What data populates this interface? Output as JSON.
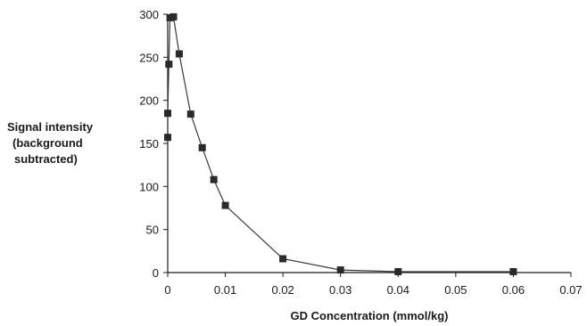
{
  "chart_data": {
    "type": "line",
    "title": "",
    "xlabel": "GD Concentration (mmol/kg)",
    "ylabel_lines": [
      "Signal intensity",
      "(background",
      "subtracted)"
    ],
    "xlim": [
      0,
      0.07
    ],
    "ylim": [
      0,
      300
    ],
    "x_ticks": [
      0,
      0.01,
      0.02,
      0.03,
      0.04,
      0.05,
      0.06,
      0.07
    ],
    "x_tick_labels": [
      "0",
      "0.01",
      "0.02",
      "0.03",
      "0.04",
      "0.05",
      "0.06",
      "0.07"
    ],
    "y_ticks": [
      0,
      50,
      100,
      150,
      200,
      250,
      300
    ],
    "y_tick_labels": [
      "0",
      "50",
      "100",
      "150",
      "200",
      "250",
      "300"
    ],
    "grid": false,
    "legend": "none",
    "marker": "square",
    "series": [
      {
        "points": [
          [
            0,
            157
          ],
          [
            0,
            185
          ],
          [
            0.0002,
            242
          ],
          [
            0.0004,
            296
          ],
          [
            0.001,
            297
          ],
          [
            0.002,
            254
          ],
          [
            0.004,
            184
          ],
          [
            0.006,
            145
          ],
          [
            0.008,
            108
          ],
          [
            0.01,
            78
          ],
          [
            0.02,
            16
          ],
          [
            0.03,
            3
          ],
          [
            0.04,
            1
          ],
          [
            0.06,
            1
          ]
        ]
      }
    ],
    "colors": {
      "line": "#3a3a3a",
      "marker": "#2a2a2a",
      "axis": "#1a1a1a"
    }
  }
}
